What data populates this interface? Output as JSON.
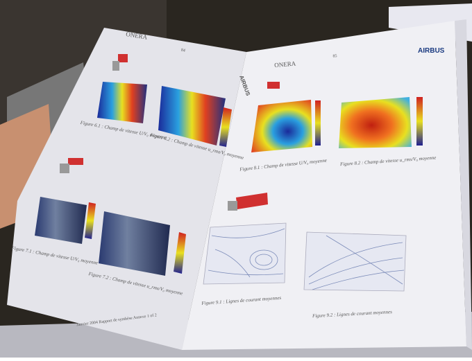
{
  "left_page": {
    "header": "ONERA",
    "page_number": "84",
    "logo": "AIRBUS",
    "figures": [
      {
        "caption": "Figure 6.1 : Champ de vitesse U/V₀ moyenne"
      },
      {
        "caption": "Figure 6.2 : Champ de vitesse u_rms/V₀ moyenne"
      },
      {
        "caption": "Figure 7.1 : Champ de vitesse U/V₀ moyenne"
      },
      {
        "caption": "Figure 7.2 : Champ de vitesse u_rms/V₀ moyenne"
      }
    ],
    "footer": "Janvier 2004  Rapport de synthèse  Annexe 1 of 2"
  },
  "right_page": {
    "header": "ONERA",
    "page_number": "85",
    "logo": "AIRBUS",
    "figures": [
      {
        "caption": "Figure 8.1 : Champ de vitesse U/V₀ moyenne"
      },
      {
        "caption": "Figure 8.2 : Champ de vitesse u_rms/V₀ moyenne"
      },
      {
        "caption": "Figure 9.1 : Lignes de courant moyennes"
      },
      {
        "caption": "Figure 9.2 : Lignes de courant moyennes"
      }
    ]
  }
}
